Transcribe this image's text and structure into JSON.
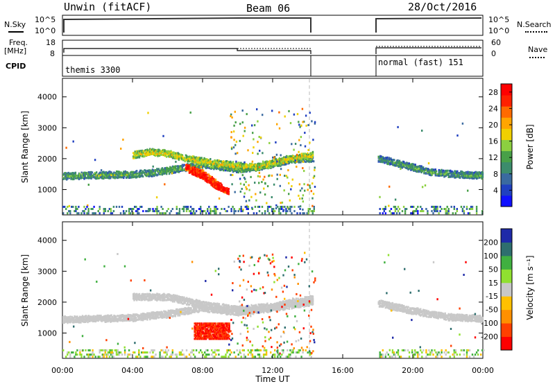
{
  "header": {
    "station": "Unwin (fitACF)",
    "beam": "Beam 06",
    "date": "28/Oct/2016"
  },
  "strips": {
    "nsky": {
      "label": "N.Sky",
      "left_ticks": [
        "10^5",
        "10^0"
      ],
      "right_ticks": [
        "10^5",
        "10^0"
      ],
      "right_label": "N.Search"
    },
    "freq": {
      "label": "Freq.",
      "unit": "[MHz]",
      "left_ticks": [
        "18",
        "8"
      ],
      "right_ticks": [
        "60",
        "0"
      ],
      "right_label": "Nave"
    },
    "cpid": {
      "label": "CPID",
      "segments": [
        "themis 3300",
        "normal (fast) 151"
      ]
    }
  },
  "colors": {
    "power": [
      "#1010ff",
      "#2040c0",
      "#3a6aa0",
      "#3c8c6c",
      "#48a048",
      "#8cd040",
      "#f0d000",
      "#ffa500",
      "#ff6a00",
      "#ff2000",
      "#ff0000"
    ],
    "velocity_neg": [
      "#ffc000",
      "#ff9000",
      "#ff4000",
      "#ff0000"
    ],
    "velocity_pos": [
      "#90e030",
      "#40b040",
      "#2e6e6e",
      "#1e2aa8"
    ],
    "velocity_gs": "#c8c8c8"
  },
  "chart_data": [
    {
      "type": "heatmap",
      "name": "power",
      "ylabel": "Slant Range [km]",
      "yticks": [
        1000,
        2000,
        3000,
        4000
      ],
      "ylim": [
        180,
        4600
      ],
      "xlim": [
        0,
        24
      ],
      "colorbar": {
        "label": "Power [dB]",
        "ticks": [
          4,
          8,
          12,
          16,
          20,
          24,
          28
        ],
        "range": [
          0,
          30
        ]
      },
      "gaps": [
        [
          14.4,
          18.0
        ]
      ],
      "features": [
        {
          "name": "main band",
          "x": [
            0.0,
            2,
            4,
            5,
            6,
            7,
            8,
            9,
            10,
            11,
            12,
            13,
            14.3
          ],
          "y": [
            1420,
            1450,
            1480,
            1520,
            1600,
            1700,
            1800,
            1720,
            1650,
            1700,
            1800,
            1950,
            2000
          ],
          "value": 13
        },
        {
          "name": "upper band",
          "x": [
            4.0,
            5,
            6,
            7,
            8,
            9,
            10,
            11,
            12,
            13,
            14.3
          ],
          "y": [
            2100,
            2200,
            2150,
            2000,
            1900,
            1820,
            1750,
            1700,
            1850,
            2000,
            2100
          ],
          "value": 18
        },
        {
          "name": "strong echo",
          "x": [
            7.0,
            8,
            8.7,
            9.2,
            9.5
          ],
          "y": [
            1700,
            1500,
            1200,
            1000,
            900
          ],
          "value": 29
        },
        {
          "name": "late band",
          "x": [
            18.0,
            19,
            20,
            21,
            22,
            23,
            24
          ],
          "y": [
            2000,
            1850,
            1700,
            1550,
            1500,
            1450,
            1450
          ],
          "value": 12
        }
      ]
    },
    {
      "type": "heatmap",
      "name": "velocity",
      "ylabel": "Slant Range [km]",
      "yticks": [
        1000,
        2000,
        3000,
        4000
      ],
      "ylim": [
        180,
        4600
      ],
      "xlim": [
        0,
        24
      ],
      "xticks": [
        "00:00",
        "04:00",
        "08:00",
        "12:00",
        "16:00",
        "20:00",
        "00:00"
      ],
      "xlabel": "Time UT",
      "colorbar": {
        "label": "Velocity [m s⁻¹]",
        "ticks": [
          "200",
          "100",
          "50",
          "15",
          "-15",
          "-50",
          "-100",
          "-200"
        ],
        "range": [
          -250,
          250
        ]
      },
      "gaps": [
        [
          14.4,
          18.0
        ]
      ],
      "features": [
        {
          "name": "ground scatter main",
          "x": [
            0.0,
            2,
            4,
            6,
            8,
            10,
            12,
            14.3
          ],
          "y": [
            1420,
            1450,
            1480,
            1600,
            1800,
            1650,
            1800,
            2000
          ],
          "value": 0
        },
        {
          "name": "ground scatter upper",
          "x": [
            4.0,
            6,
            8,
            10,
            12,
            14.3
          ],
          "y": [
            2150,
            2150,
            1900,
            1750,
            1850,
            2100
          ],
          "value": 0
        },
        {
          "name": "red patch",
          "x": [
            7.5,
            9.5
          ],
          "y": [
            800,
            1300
          ],
          "value": -220
        },
        {
          "name": "late ground scatter",
          "x": [
            18.0,
            20,
            22,
            24
          ],
          "y": [
            1950,
            1700,
            1500,
            1450
          ],
          "value": 0
        }
      ]
    }
  ]
}
